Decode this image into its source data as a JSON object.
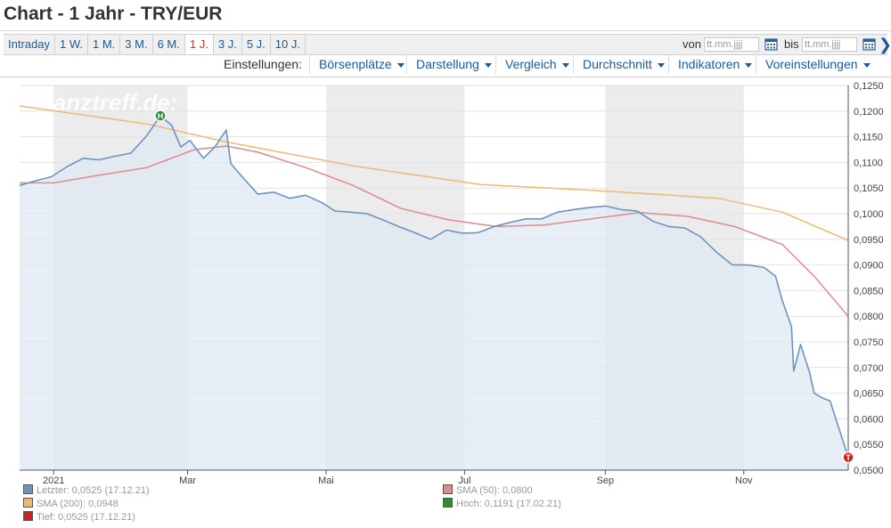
{
  "title": "Chart - 1 Jahr - TRY/EUR",
  "ranges": [
    {
      "label": "Intraday",
      "active": false
    },
    {
      "label": "1 W.",
      "active": false
    },
    {
      "label": "1 M.",
      "active": false
    },
    {
      "label": "3 M.",
      "active": false
    },
    {
      "label": "6 M.",
      "active": false
    },
    {
      "label": "1 J.",
      "active": true
    },
    {
      "label": "3 J.",
      "active": false
    },
    {
      "label": "5 J.",
      "active": false
    },
    {
      "label": "10 J.",
      "active": false
    }
  ],
  "date_from": {
    "label": "von",
    "placeholder": "tt.mm.jjjj"
  },
  "date_to": {
    "label": "bis",
    "placeholder": "tt.mm.jjjj"
  },
  "settings": {
    "label": "Einstellungen:",
    "menus": [
      "Börsenplätze",
      "Darstellung",
      "Vergleich",
      "Durchschnitt",
      "Indikatoren",
      "Voreinstellungen"
    ]
  },
  "watermark": "finanztreff.de:",
  "colors": {
    "line": "#6d93c4",
    "fill": "#dfe8f3",
    "sma50": "#e08a8a",
    "sma200": "#f0b873",
    "high": "#2e8b2e",
    "low": "#d42020",
    "band": "#ececec"
  },
  "chart_data": {
    "type": "area",
    "x_ticks": [
      "2021",
      "Mar",
      "Mai",
      "Jul",
      "Sep",
      "Nov"
    ],
    "ylim": [
      0.05,
      0.125
    ],
    "y_ticks": [
      "0,0500",
      "0,0550",
      "0,0600",
      "0,0650",
      "0,0700",
      "0,0750",
      "0,0800",
      "0,0850",
      "0,0900",
      "0,0950",
      "0,1000",
      "0,1050",
      "0,1100",
      "0,1150",
      "0,1200",
      "0,1250"
    ],
    "grid": true,
    "x_range": [
      "2020-12-17",
      "2021-12-17"
    ],
    "series": [
      {
        "name": "Letzter",
        "role": "price",
        "points": [
          [
            "2020-12-17",
            0.1055
          ],
          [
            "2020-12-24",
            0.1064
          ],
          [
            "2020-12-31",
            0.1072
          ],
          [
            "2021-01-07",
            0.1092
          ],
          [
            "2021-01-14",
            0.1108
          ],
          [
            "2021-01-21",
            0.1105
          ],
          [
            "2021-01-28",
            0.1112
          ],
          [
            "2021-02-04",
            0.1118
          ],
          [
            "2021-02-11",
            0.1152
          ],
          [
            "2021-02-17",
            0.1191
          ],
          [
            "2021-02-22",
            0.1172
          ],
          [
            "2021-02-26",
            0.113
          ],
          [
            "2021-03-02",
            0.1143
          ],
          [
            "2021-03-08",
            0.1108
          ],
          [
            "2021-03-13",
            0.113
          ],
          [
            "2021-03-18",
            0.1163
          ],
          [
            "2021-03-20",
            0.1098
          ],
          [
            "2021-03-25",
            0.1072
          ],
          [
            "2021-04-01",
            0.1038
          ],
          [
            "2021-04-08",
            0.1042
          ],
          [
            "2021-04-15",
            0.103
          ],
          [
            "2021-04-22",
            0.1036
          ],
          [
            "2021-04-29",
            0.1022
          ],
          [
            "2021-05-05",
            0.1005
          ],
          [
            "2021-05-12",
            0.1003
          ],
          [
            "2021-05-19",
            0.1
          ],
          [
            "2021-05-26",
            0.0988
          ],
          [
            "2021-06-02",
            0.0975
          ],
          [
            "2021-06-09",
            0.0963
          ],
          [
            "2021-06-16",
            0.095
          ],
          [
            "2021-06-23",
            0.0968
          ],
          [
            "2021-06-30",
            0.0962
          ],
          [
            "2021-07-07",
            0.0963
          ],
          [
            "2021-07-14",
            0.0975
          ],
          [
            "2021-07-21",
            0.0983
          ],
          [
            "2021-07-28",
            0.099
          ],
          [
            "2021-08-04",
            0.099
          ],
          [
            "2021-08-11",
            0.1003
          ],
          [
            "2021-08-18",
            0.1008
          ],
          [
            "2021-08-25",
            0.1012
          ],
          [
            "2021-09-01",
            0.1015
          ],
          [
            "2021-09-08",
            0.1008
          ],
          [
            "2021-09-15",
            0.1005
          ],
          [
            "2021-09-22",
            0.0985
          ],
          [
            "2021-09-29",
            0.0975
          ],
          [
            "2021-10-06",
            0.0972
          ],
          [
            "2021-10-13",
            0.0955
          ],
          [
            "2021-10-20",
            0.0925
          ],
          [
            "2021-10-27",
            0.09
          ],
          [
            "2021-11-03",
            0.09
          ],
          [
            "2021-11-10",
            0.0895
          ],
          [
            "2021-11-15",
            0.0878
          ],
          [
            "2021-11-18",
            0.083
          ],
          [
            "2021-11-22",
            0.078
          ],
          [
            "2021-11-23",
            0.0693
          ],
          [
            "2021-11-26",
            0.0745
          ],
          [
            "2021-11-30",
            0.069
          ],
          [
            "2021-12-02",
            0.065
          ],
          [
            "2021-12-06",
            0.064
          ],
          [
            "2021-12-09",
            0.0635
          ],
          [
            "2021-12-13",
            0.058
          ],
          [
            "2021-12-17",
            0.0525
          ]
        ]
      },
      {
        "name": "SMA (50)",
        "role": "sma50",
        "points": [
          [
            "2020-12-17",
            0.106
          ],
          [
            "2021-01-01",
            0.106
          ],
          [
            "2021-01-21",
            0.1075
          ],
          [
            "2021-02-11",
            0.109
          ],
          [
            "2021-03-04",
            0.1125
          ],
          [
            "2021-03-18",
            0.1132
          ],
          [
            "2021-04-01",
            0.112
          ],
          [
            "2021-04-22",
            0.109
          ],
          [
            "2021-05-13",
            0.1055
          ],
          [
            "2021-06-03",
            0.101
          ],
          [
            "2021-06-24",
            0.0988
          ],
          [
            "2021-07-15",
            0.0975
          ],
          [
            "2021-08-05",
            0.0978
          ],
          [
            "2021-08-26",
            0.099
          ],
          [
            "2021-09-16",
            0.1002
          ],
          [
            "2021-10-07",
            0.0995
          ],
          [
            "2021-10-28",
            0.0975
          ],
          [
            "2021-11-18",
            0.094
          ],
          [
            "2021-12-02",
            0.0878
          ],
          [
            "2021-12-17",
            0.08
          ]
        ]
      },
      {
        "name": "SMA (200)",
        "role": "sma200",
        "points": [
          [
            "2020-12-17",
            0.121
          ],
          [
            "2021-02-11",
            0.1175
          ],
          [
            "2021-03-18",
            0.114
          ],
          [
            "2021-05-13",
            0.1093
          ],
          [
            "2021-07-08",
            0.1057
          ],
          [
            "2021-09-02",
            0.1044
          ],
          [
            "2021-10-21",
            0.103
          ],
          [
            "2021-11-18",
            0.1003
          ],
          [
            "2021-12-17",
            0.0948
          ]
        ]
      }
    ],
    "markers": [
      {
        "label": "H",
        "date": "2021-02-17",
        "value": 0.1191,
        "role": "high"
      },
      {
        "label": "T",
        "date": "2021-12-17",
        "value": 0.0525,
        "role": "low"
      }
    ],
    "legend": [
      {
        "text": "Letzter: 0,0525 (17.12.21)",
        "color": "#6d93c4"
      },
      {
        "text": "SMA (50): 0,0800",
        "color": "#e08a8a"
      },
      {
        "text": "SMA (200): 0,0948",
        "color": "#f0b873"
      },
      {
        "text": "Hoch: 0,1191 (17.02.21)",
        "color": "#2e8b2e"
      },
      {
        "text": "Tief: 0,0525 (17.12.21)",
        "color": "#d42020"
      }
    ]
  }
}
